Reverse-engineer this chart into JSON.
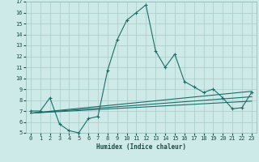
{
  "xlabel": "Humidex (Indice chaleur)",
  "background_color": "#ceeae8",
  "grid_color": "#b0d0ce",
  "line_color": "#1a6e68",
  "xlim": [
    -0.5,
    23.5
  ],
  "ylim": [
    5,
    17
  ],
  "xticks": [
    0,
    1,
    2,
    3,
    4,
    5,
    6,
    7,
    8,
    9,
    10,
    11,
    12,
    13,
    14,
    15,
    16,
    17,
    18,
    19,
    20,
    21,
    22,
    23
  ],
  "yticks": [
    5,
    6,
    7,
    8,
    9,
    10,
    11,
    12,
    13,
    14,
    15,
    16,
    17
  ],
  "series_main": {
    "x": [
      0,
      1,
      2,
      3,
      4,
      5,
      6,
      7,
      8,
      9,
      10,
      11,
      12,
      13,
      14,
      15,
      16,
      17,
      18,
      19,
      20,
      21,
      22,
      23
    ],
    "y": [
      7.0,
      7.0,
      8.2,
      5.8,
      5.2,
      5.0,
      6.3,
      6.5,
      10.7,
      13.5,
      15.3,
      16.0,
      16.7,
      12.5,
      11.0,
      12.2,
      9.7,
      9.2,
      8.7,
      9.0,
      8.2,
      7.2,
      7.3,
      8.7
    ]
  },
  "trend_lines": [
    {
      "x": [
        0,
        23
      ],
      "y": [
        6.8,
        8.8
      ]
    },
    {
      "x": [
        0,
        23
      ],
      "y": [
        6.8,
        8.3
      ]
    },
    {
      "x": [
        0,
        23
      ],
      "y": [
        6.8,
        7.9
      ]
    }
  ]
}
